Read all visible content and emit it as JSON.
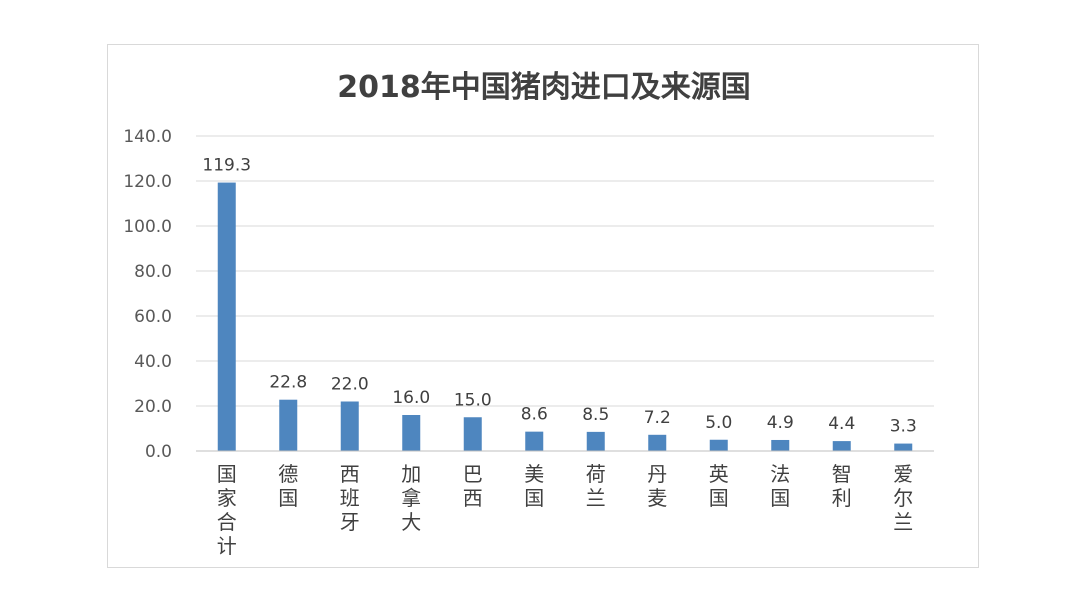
{
  "chart_data": {
    "type": "bar",
    "title": "2018年中国猪肉进口及来源国",
    "xlabel": "",
    "ylabel": "",
    "categories": [
      "国家合计",
      "德国",
      "西班牙",
      "加拿大",
      "巴西",
      "美国",
      "荷兰",
      "丹麦",
      "英国",
      "法国",
      "智利",
      "爱尔兰"
    ],
    "values": [
      119.3,
      22.8,
      22.0,
      16.0,
      15.0,
      8.6,
      8.5,
      7.2,
      5.0,
      4.9,
      4.4,
      3.3
    ],
    "value_labels": [
      "119.3",
      "22.8",
      "22.0",
      "16.0",
      "15.0",
      "8.6",
      "8.5",
      "7.2",
      "5.0",
      "4.9",
      "4.4",
      "3.3"
    ],
    "ylim": [
      0,
      140
    ],
    "yticks": [
      "0.0",
      "20.0",
      "40.0",
      "60.0",
      "80.0",
      "100.0",
      "120.0",
      "140.0"
    ],
    "grid": true,
    "legend": "none",
    "bar_color": "#4e86bf"
  }
}
